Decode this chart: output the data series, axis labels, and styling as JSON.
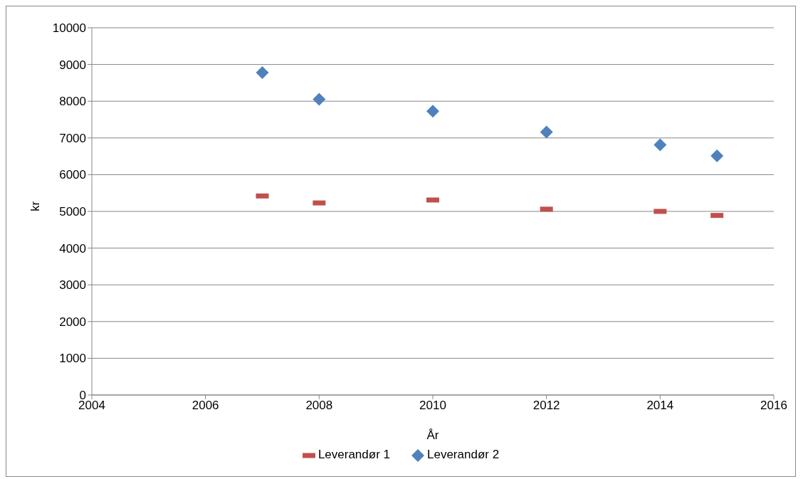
{
  "chart_data": {
    "type": "scatter",
    "xlabel": "År",
    "ylabel": "kr",
    "x": [
      2007,
      2008,
      2010,
      2012,
      2014,
      2015
    ],
    "series": [
      {
        "name": "Leverandør 1",
        "color": "#c0504d",
        "marker": "square",
        "values": [
          5420,
          5230,
          5310,
          5060,
          5000,
          4890
        ]
      },
      {
        "name": "Leverandør 2",
        "color": "#4f81bd",
        "marker": "diamond",
        "values": [
          8780,
          8050,
          7730,
          7160,
          6810,
          6510
        ]
      }
    ],
    "xlim": [
      2004,
      2016
    ],
    "xticks": [
      2004,
      2006,
      2008,
      2010,
      2012,
      2014,
      2016
    ],
    "ylim": [
      0,
      10000
    ],
    "yticks": [
      0,
      1000,
      2000,
      3000,
      4000,
      5000,
      6000,
      7000,
      8000,
      9000,
      10000
    ],
    "grid": "y",
    "legend": "bottom"
  }
}
